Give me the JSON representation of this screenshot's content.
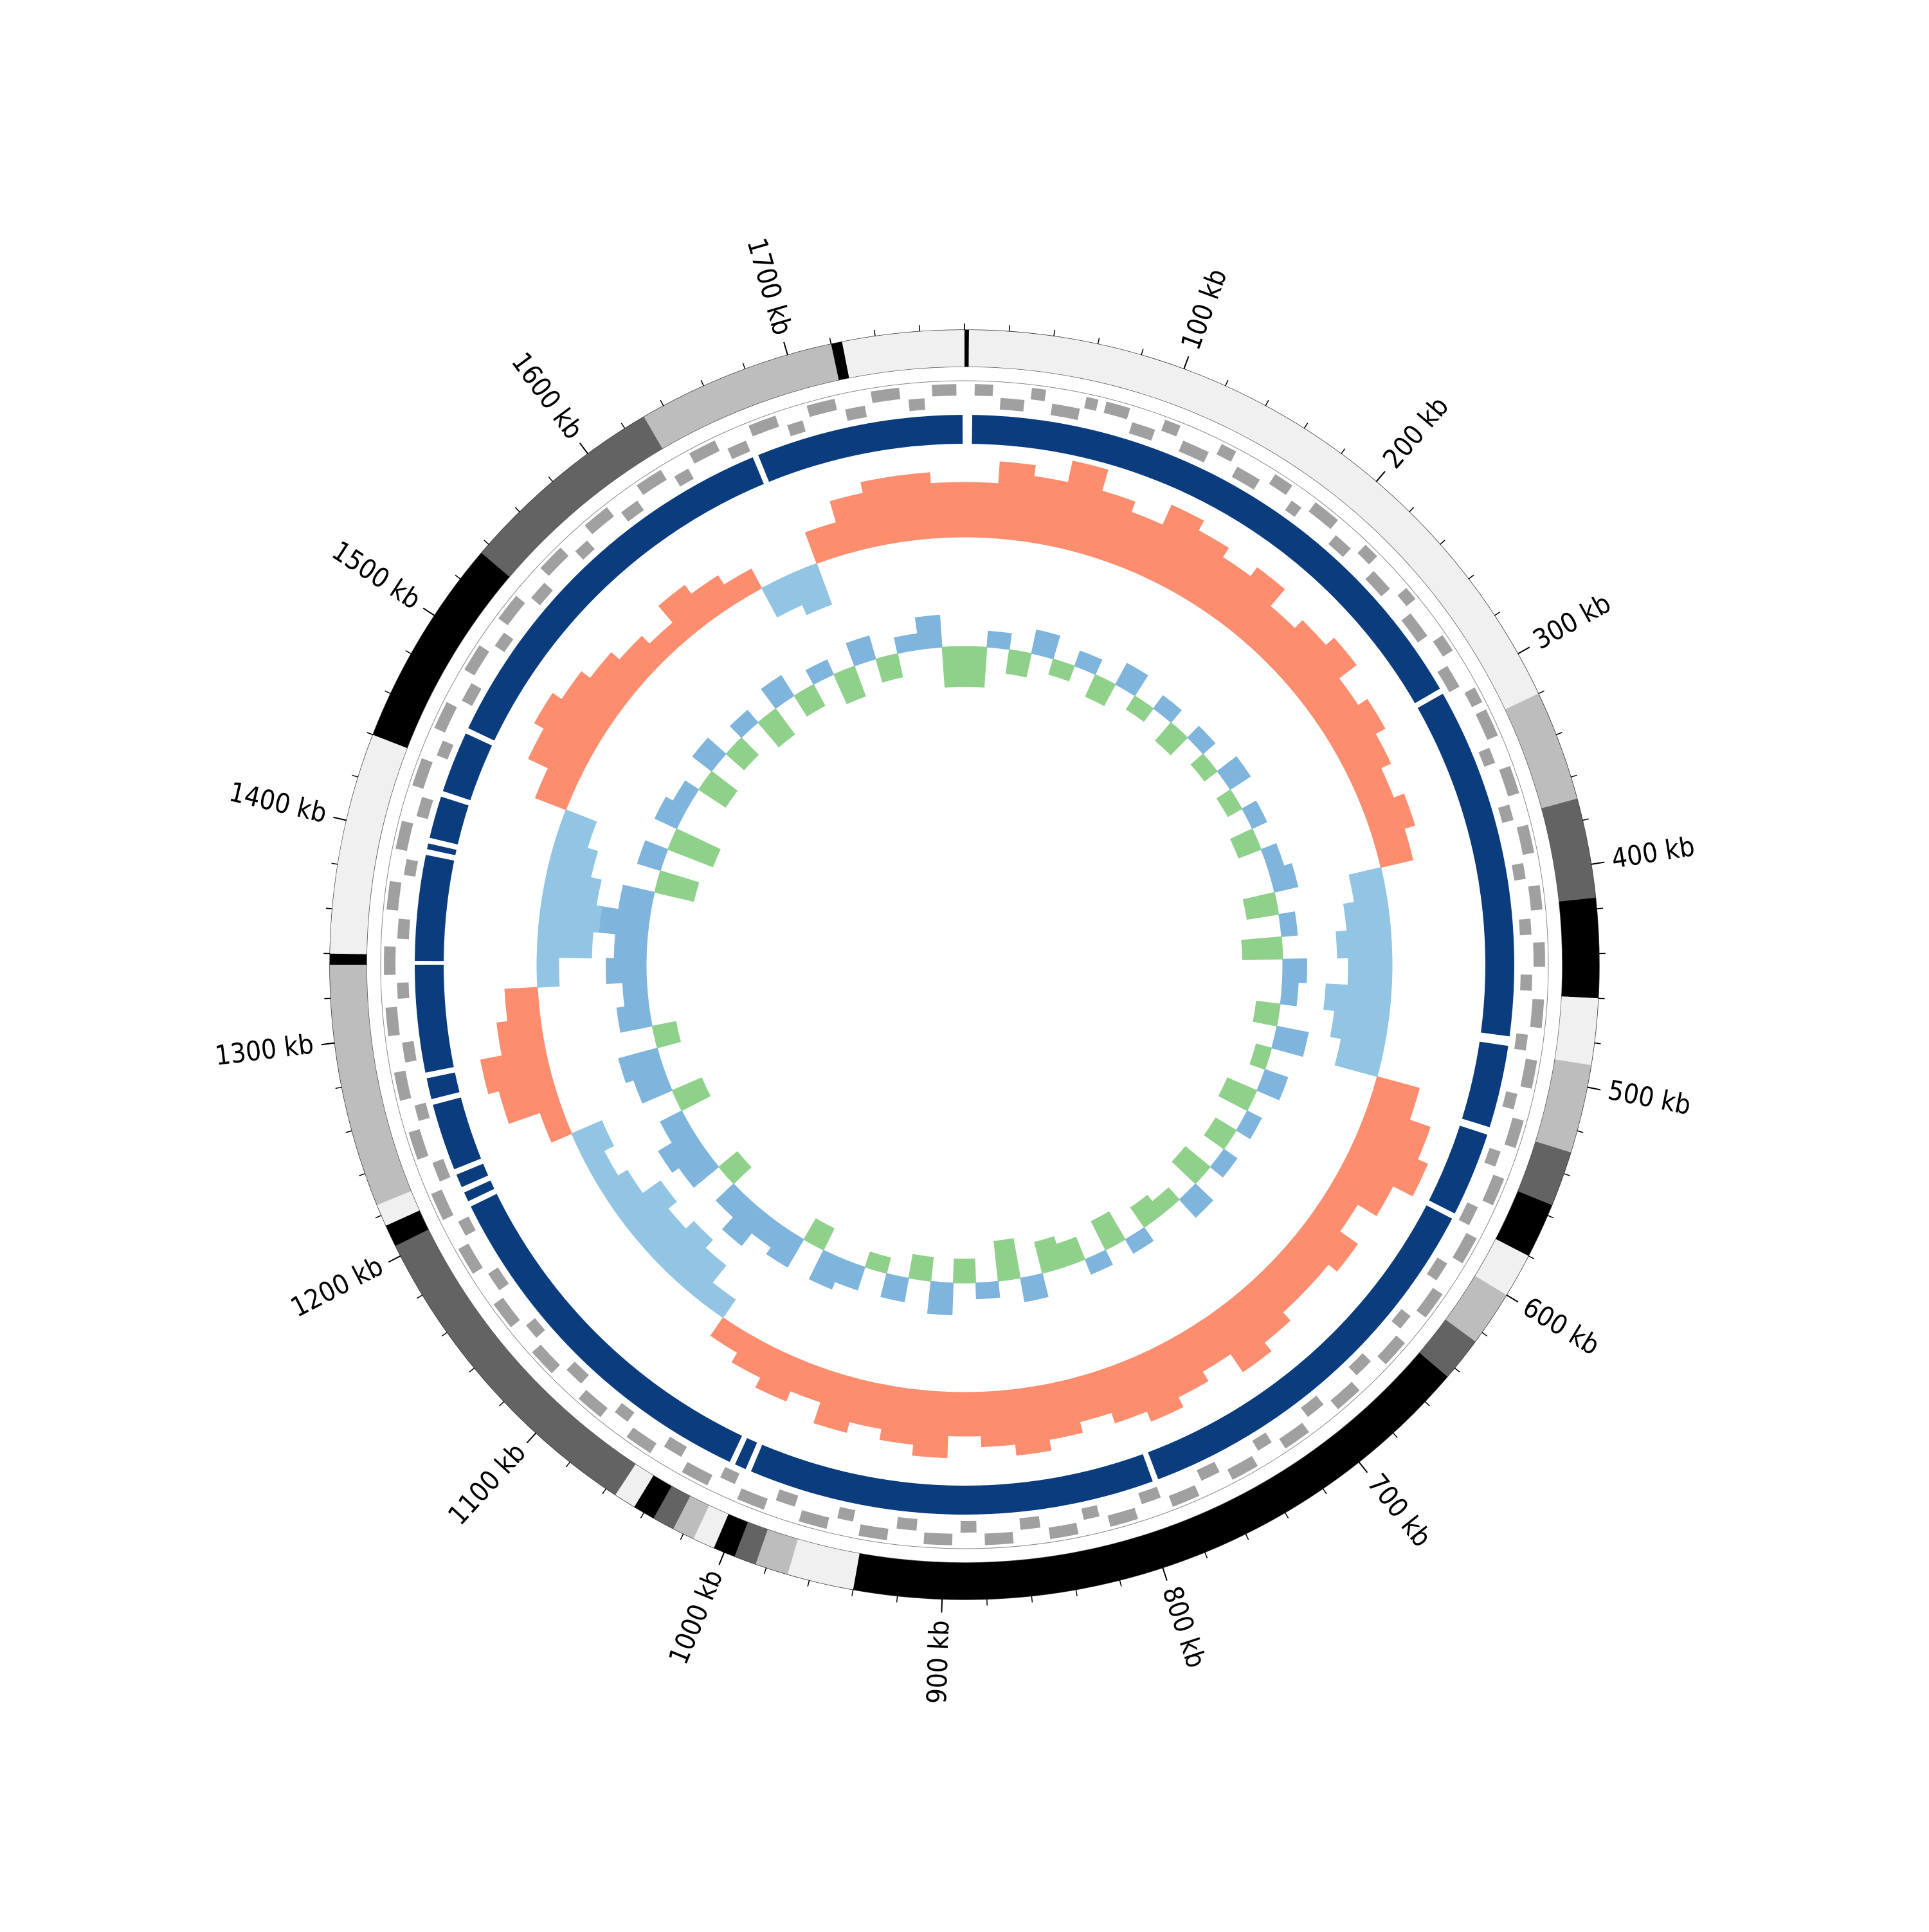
{
  "chart_data": {
    "type": "circos",
    "xlim": [
      0,
      1780
    ],
    "xticks": [
      {
        "value": 100,
        "label": "100 kb"
      },
      {
        "value": 200,
        "label": "200 kb"
      },
      {
        "value": 300,
        "label": "300 kb"
      },
      {
        "value": 400,
        "label": "400 kb"
      },
      {
        "value": 500,
        "label": "500 kb"
      },
      {
        "value": 600,
        "label": "600 kb"
      },
      {
        "value": 700,
        "label": "700 kb"
      },
      {
        "value": 800,
        "label": "800 kb"
      },
      {
        "value": 900,
        "label": "900 kb"
      },
      {
        "value": 1000,
        "label": "1000 kb"
      },
      {
        "value": 1100,
        "label": "1100 kb"
      },
      {
        "value": 1200,
        "label": "1200 kb"
      },
      {
        "value": 1300,
        "label": "1300 kb"
      },
      {
        "value": 1400,
        "label": "1400 kb"
      },
      {
        "value": 1500,
        "label": "1500 kb"
      },
      {
        "value": 1600,
        "label": "1600 kb"
      },
      {
        "value": 1700,
        "label": "1700 kb"
      }
    ],
    "bins": [
      0,
      20,
      40,
      60,
      80,
      100,
      120,
      140,
      160,
      180,
      200,
      220,
      240,
      260,
      280,
      300,
      320,
      340,
      360,
      380,
      400,
      420,
      440,
      460,
      480,
      500,
      520,
      540,
      560,
      580,
      600,
      620,
      640,
      660,
      680,
      700,
      720,
      740,
      760,
      780,
      800,
      820,
      840,
      860,
      880,
      900,
      920,
      940,
      960,
      980,
      1000,
      1020,
      1040,
      1060,
      1080,
      1100,
      1120,
      1140,
      1160,
      1180,
      1200,
      1220,
      1240,
      1260,
      1280,
      1300,
      1320,
      1340,
      1360,
      1380,
      1400,
      1420,
      1440,
      1460,
      1480,
      1500,
      1520,
      1540,
      1560,
      1580,
      1600,
      1620,
      1640,
      1660,
      1680,
      1700,
      1720,
      1740,
      1760,
      1780
    ],
    "bands": [
      [
        0,
        2,
        "#000000"
      ],
      [
        2,
        320,
        "#f0f0f0"
      ],
      [
        320,
        370,
        "#bdbdbd"
      ],
      [
        370,
        415,
        "#636363"
      ],
      [
        415,
        460,
        "#000000"
      ],
      [
        460,
        490,
        "#f0f0f0"
      ],
      [
        490,
        530,
        "#bdbdbd"
      ],
      [
        530,
        555,
        "#636363"
      ],
      [
        555,
        580,
        "#000000"
      ],
      [
        580,
        600,
        "#f0f0f0"
      ],
      [
        600,
        625,
        "#bdbdbd"
      ],
      [
        625,
        645,
        "#636363"
      ],
      [
        645,
        940,
        "#000000"
      ],
      [
        940,
        970,
        "#f0f0f0"
      ],
      [
        970,
        985,
        "#bdbdbd"
      ],
      [
        985,
        995,
        "#636363"
      ],
      [
        995,
        1005,
        "#000000"
      ],
      [
        1005,
        1015,
        "#f0f0f0"
      ],
      [
        1015,
        1025,
        "#bdbdbd"
      ],
      [
        1025,
        1035,
        "#636363"
      ],
      [
        1035,
        1045,
        "#000000"
      ],
      [
        1045,
        1055,
        "#f0f0f0"
      ],
      [
        1055,
        1205,
        "#636363"
      ],
      [
        1205,
        1215,
        "#000000"
      ],
      [
        1215,
        1225,
        "#f0f0f0"
      ],
      [
        1225,
        1335,
        "#bdbdbd"
      ],
      [
        1335,
        1340,
        "#000000"
      ],
      [
        1340,
        1440,
        "#f0f0f0"
      ],
      [
        1440,
        1535,
        "#000000"
      ],
      [
        1535,
        1630,
        "#636363"
      ],
      [
        1630,
        1720,
        "#bdbdbd"
      ],
      [
        1720,
        1725,
        "#000000"
      ],
      [
        1725,
        1780,
        "#f0f0f0"
      ]
    ],
    "genes": {
      "color": "#a0a0a0",
      "values": [
        [
          5,
          14,
          0
        ],
        [
          18,
          30,
          1
        ],
        [
          33,
          40,
          0
        ],
        [
          44,
          58,
          1
        ],
        [
          60,
          66,
          0
        ],
        [
          70,
          82,
          0
        ],
        [
          85,
          97,
          1
        ],
        [
          100,
          108,
          0
        ],
        [
          112,
          126,
          1
        ],
        [
          130,
          138,
          0
        ],
        [
          142,
          155,
          1
        ],
        [
          160,
          170,
          0
        ],
        [
          174,
          180,
          1
        ],
        [
          184,
          198,
          0
        ],
        [
          202,
          212,
          1
        ],
        [
          216,
          224,
          0
        ],
        [
          228,
          240,
          1
        ],
        [
          245,
          252,
          0
        ],
        [
          256,
          270,
          1
        ],
        [
          274,
          283,
          0
        ],
        [
          288,
          300,
          1
        ],
        [
          304,
          312,
          0
        ],
        [
          316,
          330,
          0
        ],
        [
          334,
          342,
          1
        ],
        [
          346,
          360,
          0
        ],
        [
          364,
          372,
          1
        ],
        [
          376,
          390,
          0
        ],
        [
          394,
          402,
          1
        ],
        [
          406,
          418,
          0
        ],
        [
          422,
          430,
          1
        ],
        [
          434,
          446,
          0
        ],
        [
          450,
          458,
          1
        ],
        [
          462,
          476,
          0
        ],
        [
          480,
          488,
          1
        ],
        [
          492,
          506,
          0
        ],
        [
          510,
          518,
          1
        ],
        [
          522,
          536,
          0
        ],
        [
          540,
          548,
          1
        ],
        [
          552,
          566,
          0
        ],
        [
          570,
          580,
          1
        ],
        [
          584,
          598,
          0
        ],
        [
          602,
          612,
          1
        ],
        [
          616,
          630,
          0
        ],
        [
          634,
          642,
          1
        ],
        [
          646,
          660,
          0
        ],
        [
          664,
          674,
          1
        ],
        [
          678,
          692,
          0
        ],
        [
          696,
          706,
          1
        ],
        [
          710,
          724,
          0
        ],
        [
          728,
          736,
          1
        ],
        [
          740,
          754,
          0
        ],
        [
          758,
          768,
          1
        ],
        [
          772,
          786,
          0
        ],
        [
          790,
          800,
          1
        ],
        [
          804,
          818,
          0
        ],
        [
          822,
          830,
          1
        ],
        [
          834,
          848,
          0
        ],
        [
          852,
          862,
          1
        ],
        [
          866,
          880,
          0
        ],
        [
          884,
          892,
          1
        ],
        [
          896,
          910,
          0
        ],
        [
          914,
          924,
          1
        ],
        [
          928,
          942,
          0
        ],
        [
          946,
          954,
          1
        ],
        [
          958,
          972,
          0
        ],
        [
          976,
          986,
          1
        ],
        [
          990,
          1004,
          0
        ],
        [
          1008,
          1016,
          1
        ],
        [
          1020,
          1034,
          0
        ],
        [
          1038,
          1048,
          1
        ],
        [
          1052,
          1066,
          0
        ],
        [
          1070,
          1078,
          1
        ],
        [
          1082,
          1096,
          0
        ],
        [
          1100,
          1110,
          1
        ],
        [
          1114,
          1128,
          0
        ],
        [
          1132,
          1140,
          1
        ],
        [
          1144,
          1158,
          0
        ],
        [
          1162,
          1172,
          1
        ],
        [
          1176,
          1190,
          0
        ],
        [
          1194,
          1202,
          1
        ],
        [
          1206,
          1220,
          0
        ],
        [
          1224,
          1234,
          1
        ],
        [
          1238,
          1252,
          0
        ],
        [
          1256,
          1264,
          1
        ],
        [
          1268,
          1282,
          0
        ],
        [
          1286,
          1296,
          1
        ],
        [
          1300,
          1314,
          0
        ],
        [
          1318,
          1326,
          1
        ],
        [
          1330,
          1344,
          0
        ],
        [
          1348,
          1358,
          1
        ],
        [
          1362,
          1376,
          0
        ],
        [
          1380,
          1388,
          1
        ],
        [
          1392,
          1406,
          0
        ],
        [
          1410,
          1420,
          1
        ],
        [
          1424,
          1438,
          0
        ],
        [
          1442,
          1450,
          1
        ],
        [
          1454,
          1468,
          0
        ],
        [
          1472,
          1482,
          1
        ],
        [
          1486,
          1500,
          0
        ],
        [
          1504,
          1512,
          1
        ],
        [
          1516,
          1530,
          0
        ],
        [
          1534,
          1544,
          1
        ],
        [
          1548,
          1562,
          0
        ],
        [
          1566,
          1574,
          1
        ],
        [
          1578,
          1592,
          0
        ],
        [
          1596,
          1606,
          1
        ],
        [
          1610,
          1624,
          0
        ],
        [
          1628,
          1636,
          1
        ],
        [
          1640,
          1654,
          0
        ],
        [
          1658,
          1668,
          1
        ],
        [
          1672,
          1686,
          0
        ],
        [
          1690,
          1698,
          1
        ],
        [
          1702,
          1716,
          0
        ],
        [
          1720,
          1730,
          1
        ],
        [
          1734,
          1748,
          0
        ],
        [
          1752,
          1760,
          1
        ],
        [
          1764,
          1776,
          0
        ]
      ]
    },
    "blocks": {
      "color": "#0b3d7e",
      "values": [
        [
          4,
          296
        ],
        [
          299,
          482
        ],
        [
          487,
          530
        ],
        [
          534,
          578
        ],
        [
          581,
          788
        ],
        [
          791,
          1003
        ],
        [
          1006,
          1012
        ],
        [
          1015,
          1206
        ],
        [
          1209,
          1214
        ],
        [
          1217,
          1224
        ],
        [
          1227,
          1262
        ],
        [
          1265,
          1276
        ],
        [
          1279,
          1335
        ],
        [
          1337,
          1392
        ],
        [
          1395,
          1398
        ],
        [
          1401,
          1423
        ],
        [
          1426,
          1458
        ],
        [
          1461,
          1668
        ],
        [
          1671,
          1779
        ]
      ]
    },
    "tracks": [
      {
        "pos_color": "#fc8d6e",
        "neg_color": "#92c5e3",
        "values": [
          0.5,
          0.7,
          0.6,
          0.8,
          0.6,
          0.5,
          0.7,
          0.6,
          0.5,
          0.6,
          0.4,
          0.5,
          0.6,
          0.4,
          0.5,
          0.4,
          0.3,
          0.4,
          0.3,
          -0.3,
          -0.4,
          -0.5,
          -0.4,
          -0.6,
          -0.5,
          -0.4,
          0.4,
          0.6,
          0.7,
          0.5,
          0.3,
          0.5,
          0.4,
          0.4,
          0.5,
          0.6,
          0.4,
          0.5,
          0.6,
          0.5,
          0.4,
          0.5,
          0.6,
          0.5,
          0.4,
          0.6,
          0.5,
          0.4,
          0.5,
          0.3,
          0.4,
          0.3,
          0.2,
          -0.2,
          -0.4,
          -0.5,
          -0.4,
          -0.5,
          -0.3,
          -0.2,
          -0.3,
          0.2,
          0.5,
          0.6,
          0.4,
          0.3,
          -0.2,
          -0.5,
          -0.6,
          -0.5,
          -0.4,
          -0.3,
          0.3,
          0.5,
          0.6,
          0.5,
          0.4,
          0.3,
          0.2,
          0.4,
          0.3,
          0.2,
          -0.3,
          -0.4,
          0.3,
          0.5,
          0.6,
          0.6,
          0.5
        ]
      },
      {
        "pos_color": "#7fb5dc",
        "neg_color": "#8fd18a",
        "values": [
          -0.5,
          0.2,
          -0.3,
          0.3,
          -0.2,
          0.2,
          -0.3,
          0.3,
          -0.2,
          0.2,
          -0.3,
          0.2,
          -0.2,
          0.3,
          -0.2,
          0.2,
          -0.3,
          0.2,
          0.3,
          -0.4,
          0.2,
          -0.5,
          0.3,
          0.2,
          -0.3,
          0.4,
          -0.2,
          0.3,
          -0.4,
          0.2,
          -0.3,
          0.2,
          -0.4,
          0.3,
          -0.2,
          -0.3,
          0.2,
          -0.4,
          0.2,
          -0.3,
          -0.4,
          0.3,
          -0.5,
          0.2,
          -0.3,
          0.4,
          -0.3,
          0.3,
          -0.2,
          0.3,
          0.4,
          -0.3,
          0.4,
          0.3,
          0.5,
          0.3,
          -0.3,
          0.4,
          0.5,
          0.3,
          -0.4,
          0.4,
          0.5,
          -0.3,
          0.4,
          0.3,
          0.5,
          0.4,
          0.6,
          0.4,
          -0.5,
          0.3,
          -0.6,
          0.3,
          0.2,
          -0.4,
          0.3,
          -0.3,
          0.2,
          -0.4,
          0.3,
          -0.3,
          0.2,
          -0.4,
          0.3,
          -0.3,
          0.2,
          0.4,
          -0.5
        ]
      }
    ]
  }
}
